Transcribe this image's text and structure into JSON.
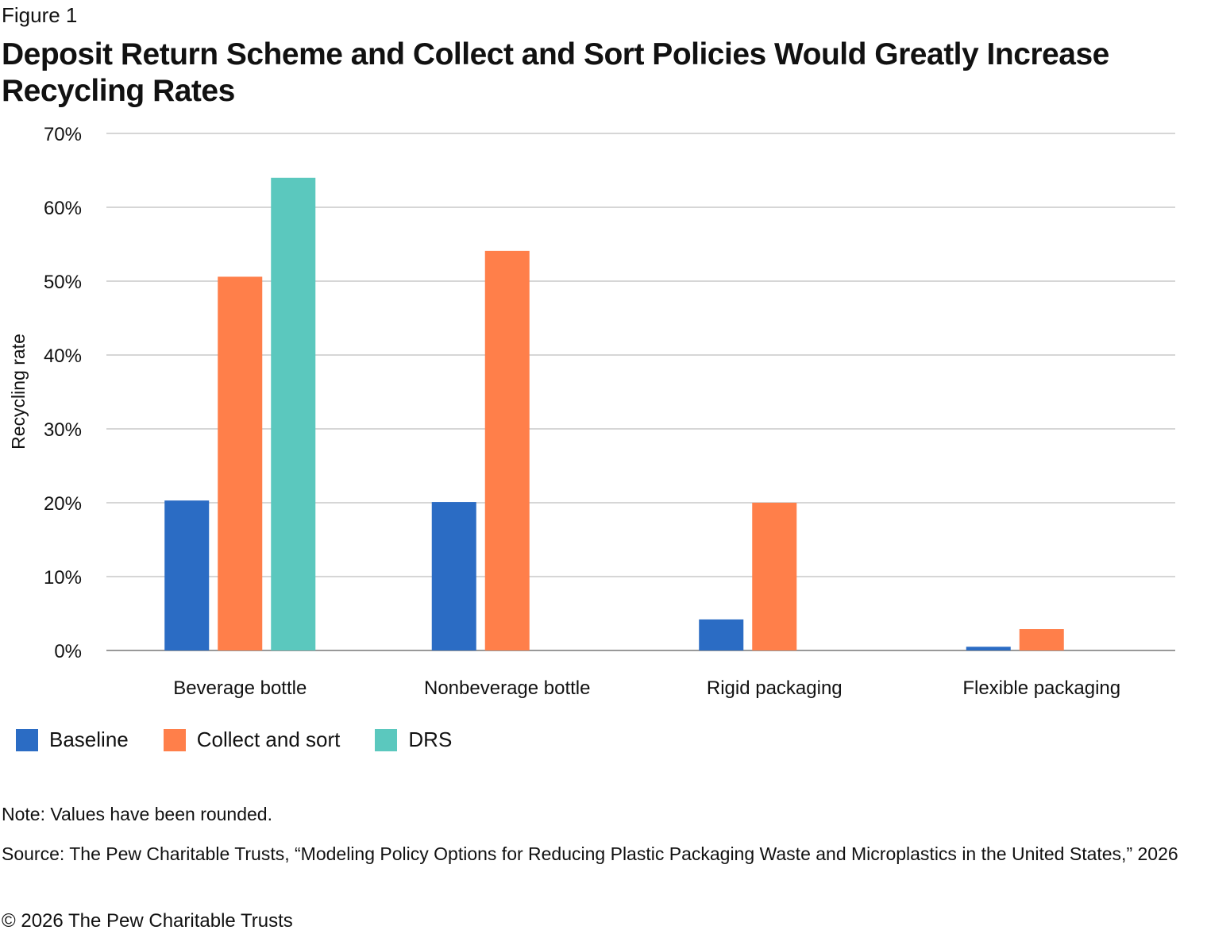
{
  "figure_label": "Figure 1",
  "title": "Deposit Return Scheme and Collect and Sort Policies Would Greatly Increase Recycling Rates",
  "chart_data": {
    "type": "bar",
    "title": "Deposit Return Scheme and Collect and Sort Policies Would Greatly Increase Recycling Rates",
    "xlabel": "",
    "ylabel": "Recycling rate",
    "ylim": [
      0,
      70
    ],
    "yticks": [
      0,
      10,
      20,
      30,
      40,
      50,
      60,
      70
    ],
    "ytick_labels": [
      "0%",
      "10%",
      "20%",
      "30%",
      "40%",
      "50%",
      "60%",
      "70%"
    ],
    "grid": true,
    "legend_position": "bottom-left",
    "categories": [
      "Beverage bottle",
      "Nonbeverage bottle",
      "Rigid packaging",
      "Flexible packaging"
    ],
    "series": [
      {
        "name": "Baseline",
        "color": "#2b6cc4",
        "values": [
          20.3,
          20.1,
          4.2,
          0.5
        ]
      },
      {
        "name": "Collect and sort",
        "color": "#ff7f4a",
        "values": [
          50.6,
          54.1,
          20.0,
          2.9
        ]
      },
      {
        "name": "DRS",
        "color": "#5bc8be",
        "values": [
          64.0,
          null,
          null,
          null
        ]
      }
    ]
  },
  "note": "Note: Values have been rounded.",
  "source": "Source: The Pew Charitable Trusts, “Modeling Policy Options for Reducing Plastic Packaging Waste and Microplastics in the United States,” 2026",
  "copyright": "© 2026 The Pew Charitable Trusts"
}
